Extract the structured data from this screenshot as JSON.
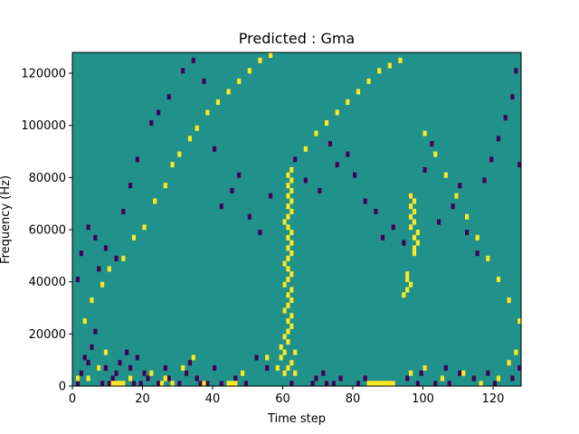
{
  "chart_data": {
    "type": "heatmap",
    "title": "Predicted : Gma",
    "xlabel": "Time step",
    "ylabel": "Frequency (Hz)",
    "xlim": [
      0,
      128
    ],
    "ylim": [
      0,
      128000
    ],
    "x_ticks": [
      0,
      20,
      40,
      60,
      80,
      100,
      120
    ],
    "y_ticks": [
      0,
      20000,
      40000,
      60000,
      80000,
      100000,
      120000
    ],
    "y_tick_labels": [
      "0",
      "20000",
      "40000",
      "60000",
      "80000",
      "100000",
      "120000"
    ],
    "grid": false,
    "colormap": "viridis",
    "colors": {
      "background": "#21918c",
      "low": "#440154",
      "high": "#fde725"
    },
    "n_time_steps": 128,
    "n_freq_bins": 64,
    "freq_bin_width": 2000,
    "low_cells": [
      [
        1,
        0
      ],
      [
        2,
        2
      ],
      [
        3,
        5
      ],
      [
        4,
        4
      ],
      [
        5,
        7
      ],
      [
        6,
        10
      ],
      [
        8,
        0
      ],
      [
        9,
        3
      ],
      [
        10,
        0
      ],
      [
        11,
        1
      ],
      [
        12,
        2
      ],
      [
        13,
        4
      ],
      [
        15,
        6
      ],
      [
        16,
        3
      ],
      [
        17,
        0
      ],
      [
        18,
        5
      ],
      [
        19,
        0
      ],
      [
        20,
        2
      ],
      [
        21,
        1
      ],
      [
        24,
        0
      ],
      [
        26,
        3
      ],
      [
        27,
        1
      ],
      [
        30,
        0
      ],
      [
        32,
        2
      ],
      [
        33,
        4
      ],
      [
        35,
        1
      ],
      [
        36,
        0
      ],
      [
        38,
        0
      ],
      [
        40,
        3
      ],
      [
        42,
        0
      ],
      [
        46,
        1
      ],
      [
        49,
        0
      ],
      [
        52,
        5
      ],
      [
        55,
        3
      ],
      [
        62,
        0
      ],
      [
        68,
        0
      ],
      [
        69,
        1
      ],
      [
        71,
        2
      ],
      [
        72,
        0
      ],
      [
        74,
        0
      ],
      [
        76,
        1
      ],
      [
        81,
        0
      ],
      [
        83,
        1
      ],
      [
        86,
        0
      ],
      [
        95,
        1
      ],
      [
        98,
        0
      ],
      [
        99,
        2
      ],
      [
        103,
        0
      ],
      [
        106,
        3
      ],
      [
        107,
        0
      ],
      [
        110,
        2
      ],
      [
        114,
        1
      ],
      [
        118,
        2
      ],
      [
        120,
        0
      ],
      [
        125,
        1
      ],
      [
        127,
        3
      ],
      [
        1,
        20
      ],
      [
        2,
        25
      ],
      [
        4,
        30
      ],
      [
        6,
        28
      ],
      [
        7,
        22
      ],
      [
        9,
        26
      ],
      [
        12,
        24
      ],
      [
        14,
        33
      ],
      [
        16,
        38
      ],
      [
        18,
        43
      ],
      [
        22,
        50
      ],
      [
        24,
        52
      ],
      [
        27,
        55
      ],
      [
        31,
        60
      ],
      [
        34,
        62
      ],
      [
        37,
        58
      ],
      [
        40,
        45
      ],
      [
        42,
        34
      ],
      [
        45,
        37
      ],
      [
        47,
        40
      ],
      [
        50,
        32
      ],
      [
        53,
        29
      ],
      [
        56,
        36
      ],
      [
        63,
        43
      ],
      [
        66,
        39
      ],
      [
        70,
        37
      ],
      [
        73,
        46
      ],
      [
        75,
        42
      ],
      [
        78,
        44
      ],
      [
        80,
        40
      ],
      [
        83,
        35
      ],
      [
        86,
        33
      ],
      [
        88,
        28
      ],
      [
        91,
        30
      ],
      [
        94,
        27
      ],
      [
        96,
        36
      ],
      [
        100,
        41
      ],
      [
        102,
        46
      ],
      [
        104,
        31
      ],
      [
        108,
        34
      ],
      [
        110,
        38
      ],
      [
        112,
        29
      ],
      [
        115,
        25
      ],
      [
        117,
        39
      ],
      [
        119,
        43
      ],
      [
        121,
        47
      ],
      [
        123,
        51
      ],
      [
        125,
        55
      ],
      [
        126,
        60
      ],
      [
        127,
        42
      ]
    ],
    "high_cells": [
      [
        1,
        1
      ],
      [
        4,
        1
      ],
      [
        7,
        3
      ],
      [
        9,
        6
      ],
      [
        11,
        0
      ],
      [
        12,
        0
      ],
      [
        13,
        0
      ],
      [
        14,
        0
      ],
      [
        16,
        1
      ],
      [
        22,
        2
      ],
      [
        25,
        0
      ],
      [
        26,
        1
      ],
      [
        28,
        0
      ],
      [
        31,
        3
      ],
      [
        34,
        5
      ],
      [
        37,
        0
      ],
      [
        44,
        0
      ],
      [
        45,
        0
      ],
      [
        46,
        0
      ],
      [
        48,
        2
      ],
      [
        55,
        5
      ],
      [
        58,
        3
      ],
      [
        84,
        0
      ],
      [
        85,
        0
      ],
      [
        86,
        0
      ],
      [
        87,
        0
      ],
      [
        88,
        0
      ],
      [
        89,
        0
      ],
      [
        90,
        0
      ],
      [
        91,
        0
      ],
      [
        96,
        2
      ],
      [
        100,
        3
      ],
      [
        105,
        1
      ],
      [
        111,
        2
      ],
      [
        116,
        0
      ],
      [
        121,
        1
      ],
      [
        124,
        4
      ],
      [
        126,
        6
      ],
      [
        61,
        8
      ],
      [
        60,
        9
      ],
      [
        61,
        10
      ],
      [
        62,
        11
      ],
      [
        61,
        12
      ],
      [
        62,
        13
      ],
      [
        60,
        14
      ],
      [
        61,
        15
      ],
      [
        62,
        16
      ],
      [
        61,
        17
      ],
      [
        62,
        18
      ],
      [
        60,
        19
      ],
      [
        61,
        20
      ],
      [
        62,
        21
      ],
      [
        61,
        22
      ],
      [
        60,
        23
      ],
      [
        61,
        24
      ],
      [
        62,
        25
      ],
      [
        61,
        26
      ],
      [
        62,
        27
      ],
      [
        61,
        28
      ],
      [
        62,
        29
      ],
      [
        61,
        30
      ],
      [
        60,
        31
      ],
      [
        61,
        32
      ],
      [
        62,
        33
      ],
      [
        61,
        34
      ],
      [
        62,
        35
      ],
      [
        61,
        36
      ],
      [
        62,
        37
      ],
      [
        61,
        38
      ],
      [
        62,
        39
      ],
      [
        61,
        40
      ],
      [
        62,
        41
      ],
      [
        59,
        5
      ],
      [
        60,
        6
      ],
      [
        63,
        6
      ],
      [
        59,
        7
      ],
      [
        60,
        2
      ],
      [
        61,
        3
      ],
      [
        62,
        4
      ],
      [
        63,
        2
      ],
      [
        97,
        25
      ],
      [
        97,
        26
      ],
      [
        98,
        27
      ],
      [
        97,
        28
      ],
      [
        98,
        29
      ],
      [
        96,
        30
      ],
      [
        97,
        31
      ],
      [
        96,
        32
      ],
      [
        97,
        33
      ],
      [
        96,
        34
      ],
      [
        97,
        35
      ],
      [
        96,
        36
      ],
      [
        95,
        20
      ],
      [
        95,
        21
      ],
      [
        94,
        17
      ],
      [
        95,
        18
      ],
      [
        96,
        19
      ],
      [
        3,
        12
      ],
      [
        5,
        16
      ],
      [
        8,
        19
      ],
      [
        10,
        22
      ],
      [
        14,
        24
      ],
      [
        17,
        28
      ],
      [
        20,
        30
      ],
      [
        23,
        35
      ],
      [
        26,
        38
      ],
      [
        28,
        42
      ],
      [
        30,
        44
      ],
      [
        33,
        47
      ],
      [
        35,
        49
      ],
      [
        38,
        52
      ],
      [
        41,
        54
      ],
      [
        44,
        56
      ],
      [
        47,
        58
      ],
      [
        50,
        60
      ],
      [
        53,
        62
      ],
      [
        56,
        63
      ],
      [
        66,
        45
      ],
      [
        69,
        48
      ],
      [
        72,
        50
      ],
      [
        75,
        52
      ],
      [
        78,
        54
      ],
      [
        81,
        56
      ],
      [
        84,
        58
      ],
      [
        87,
        60
      ],
      [
        90,
        61
      ],
      [
        93,
        62
      ],
      [
        100,
        48
      ],
      [
        103,
        44
      ],
      [
        106,
        40
      ],
      [
        109,
        36
      ],
      [
        112,
        32
      ],
      [
        115,
        28
      ],
      [
        118,
        24
      ],
      [
        121,
        20
      ],
      [
        124,
        16
      ],
      [
        127,
        12
      ]
    ]
  }
}
